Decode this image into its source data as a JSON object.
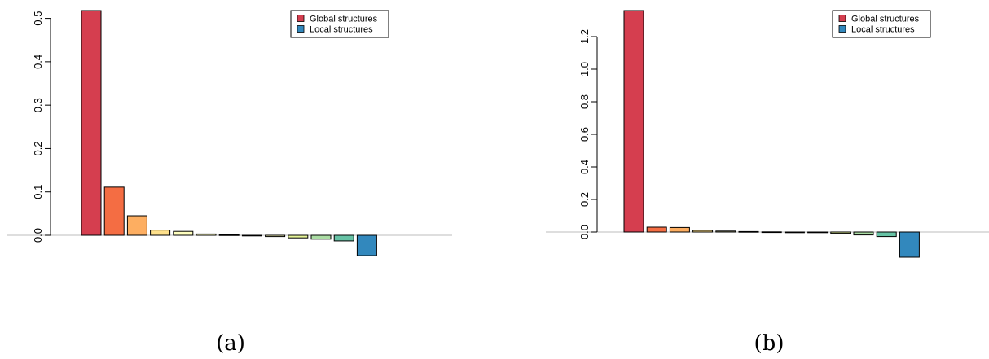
{
  "chart_data": [
    {
      "type": "bar",
      "caption": "(a)",
      "values": [
        0.518,
        0.111,
        0.045,
        0.012,
        0.009,
        0.003,
        0.001,
        -0.001,
        -0.003,
        -0.006,
        -0.009,
        -0.013,
        -0.047
      ],
      "colors": [
        "#D53E4F",
        "#F46D43",
        "#FDAE61",
        "#FEE08B",
        "#FFFFBF",
        "#FFFFBF",
        "#FFFFBF",
        "#FFFFBF",
        "#FFFFBF",
        "#E6F598",
        "#ABDDA4",
        "#66C2A5",
        "#3288BD"
      ],
      "yticks": [
        0.0,
        0.1,
        0.2,
        0.3,
        0.4,
        0.5
      ],
      "ytick_labels": [
        "0.0",
        "0.1",
        "0.2",
        "0.3",
        "0.4",
        "0.5"
      ],
      "ylim": [
        -0.05,
        0.518
      ],
      "legend": {
        "position": "top-right",
        "entries": [
          {
            "label": "Global structures",
            "color": "#D53E4F"
          },
          {
            "label": "Local structures",
            "color": "#3288BD"
          }
        ]
      }
    },
    {
      "type": "bar",
      "caption": "(b)",
      "values": [
        1.36,
        0.03,
        0.028,
        0.01,
        0.006,
        0.003,
        0.001,
        -0.001,
        -0.004,
        -0.008,
        -0.018,
        -0.028,
        -0.155
      ],
      "colors": [
        "#D53E4F",
        "#F46D43",
        "#FDAE61",
        "#FEE08B",
        "#FFFFBF",
        "#FFFFBF",
        "#FFFFBF",
        "#FFFFBF",
        "#FFFFBF",
        "#E6F598",
        "#ABDDA4",
        "#66C2A5",
        "#3288BD"
      ],
      "yticks": [
        0.0,
        0.2,
        0.4,
        0.6,
        0.8,
        1.0,
        1.2
      ],
      "ytick_labels": [
        "0.0",
        "0.2",
        "0.4",
        "0.6",
        "0.8",
        "1.0",
        "1.2"
      ],
      "ylim": [
        -0.16,
        1.36
      ],
      "legend": {
        "position": "top-right",
        "entries": [
          {
            "label": "Global structures",
            "color": "#D53E4F"
          },
          {
            "label": "Local structures",
            "color": "#3288BD"
          }
        ]
      }
    }
  ]
}
